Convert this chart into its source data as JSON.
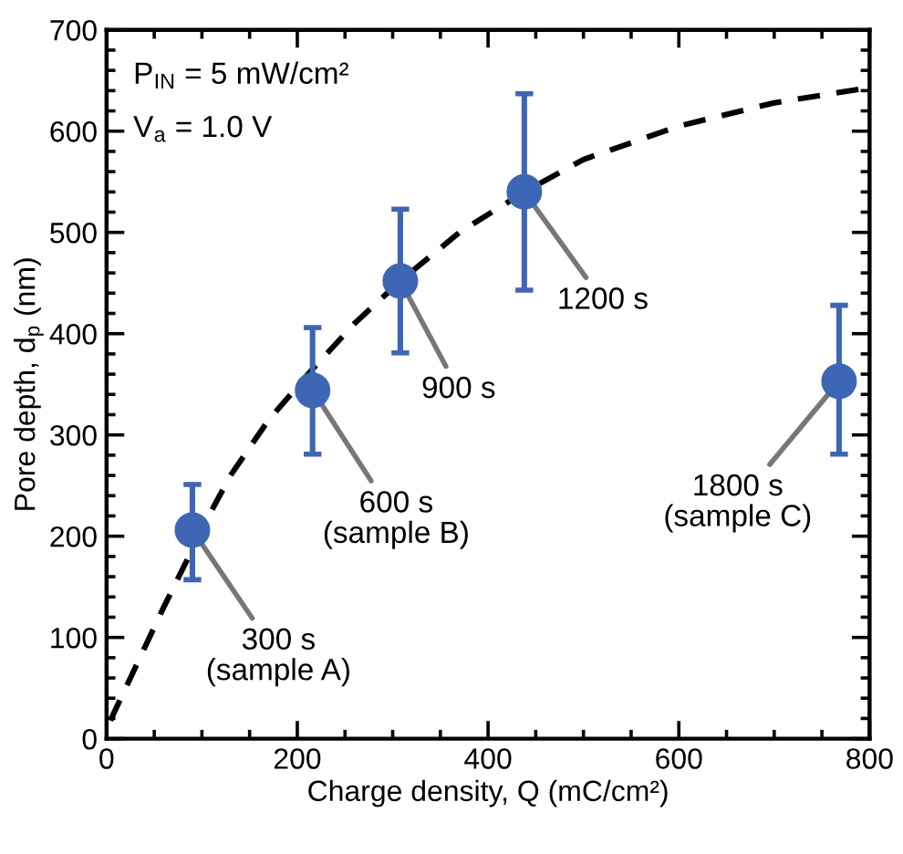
{
  "chart_data": {
    "type": "scatter",
    "xlabel": "Charge density, Q (mC/cm²)",
    "ylabel": "Pore depth, d$_{p}$ (nm)",
    "xlim": [
      0,
      800
    ],
    "xticks": [
      0,
      200,
      400,
      600,
      800
    ],
    "ylim": [
      0,
      700
    ],
    "yticks": [
      0,
      100,
      200,
      300,
      400,
      500,
      600,
      700
    ],
    "grid": false,
    "legend": false,
    "series": [
      {
        "type": "line",
        "color": "#000000",
        "line_style": "dashed",
        "marker": "none",
        "x": [
          4,
          30,
          60,
          110,
          130,
          170,
          216,
          260,
          308,
          370,
          438,
          500,
          600,
          700,
          800
        ],
        "values": [
          18,
          70,
          130,
          225,
          260,
          315,
          365,
          410,
          452,
          500,
          540,
          572,
          605,
          628,
          643
        ]
      },
      {
        "color": "#3d67b5",
        "marker": "circle",
        "x": [
          90,
          216,
          308,
          438,
          768
        ],
        "values": [
          206,
          344,
          452,
          540,
          353
        ],
        "errors": [
          [
            157,
            251
          ],
          [
            281,
            406
          ],
          [
            381,
            523
          ],
          [
            443,
            637
          ],
          [
            281,
            428
          ]
        ]
      }
    ],
    "annotations": [
      "P$_{IN}$ = 5 mW/cm²",
      "V$_{a}$ = 1.0 V",
      {
        "text": "300 s\n(sample A)",
        "x": 90,
        "y": 206
      },
      {
        "text": "600 s\n(sample B)",
        "x": 216,
        "y": 344
      },
      {
        "text": "900 s",
        "x": 308,
        "y": 452
      },
      {
        "text": "1200 s",
        "x": 438,
        "y": 540
      },
      {
        "text": "1800 s\n(sample C)",
        "x": 768,
        "y": 353
      }
    ]
  }
}
